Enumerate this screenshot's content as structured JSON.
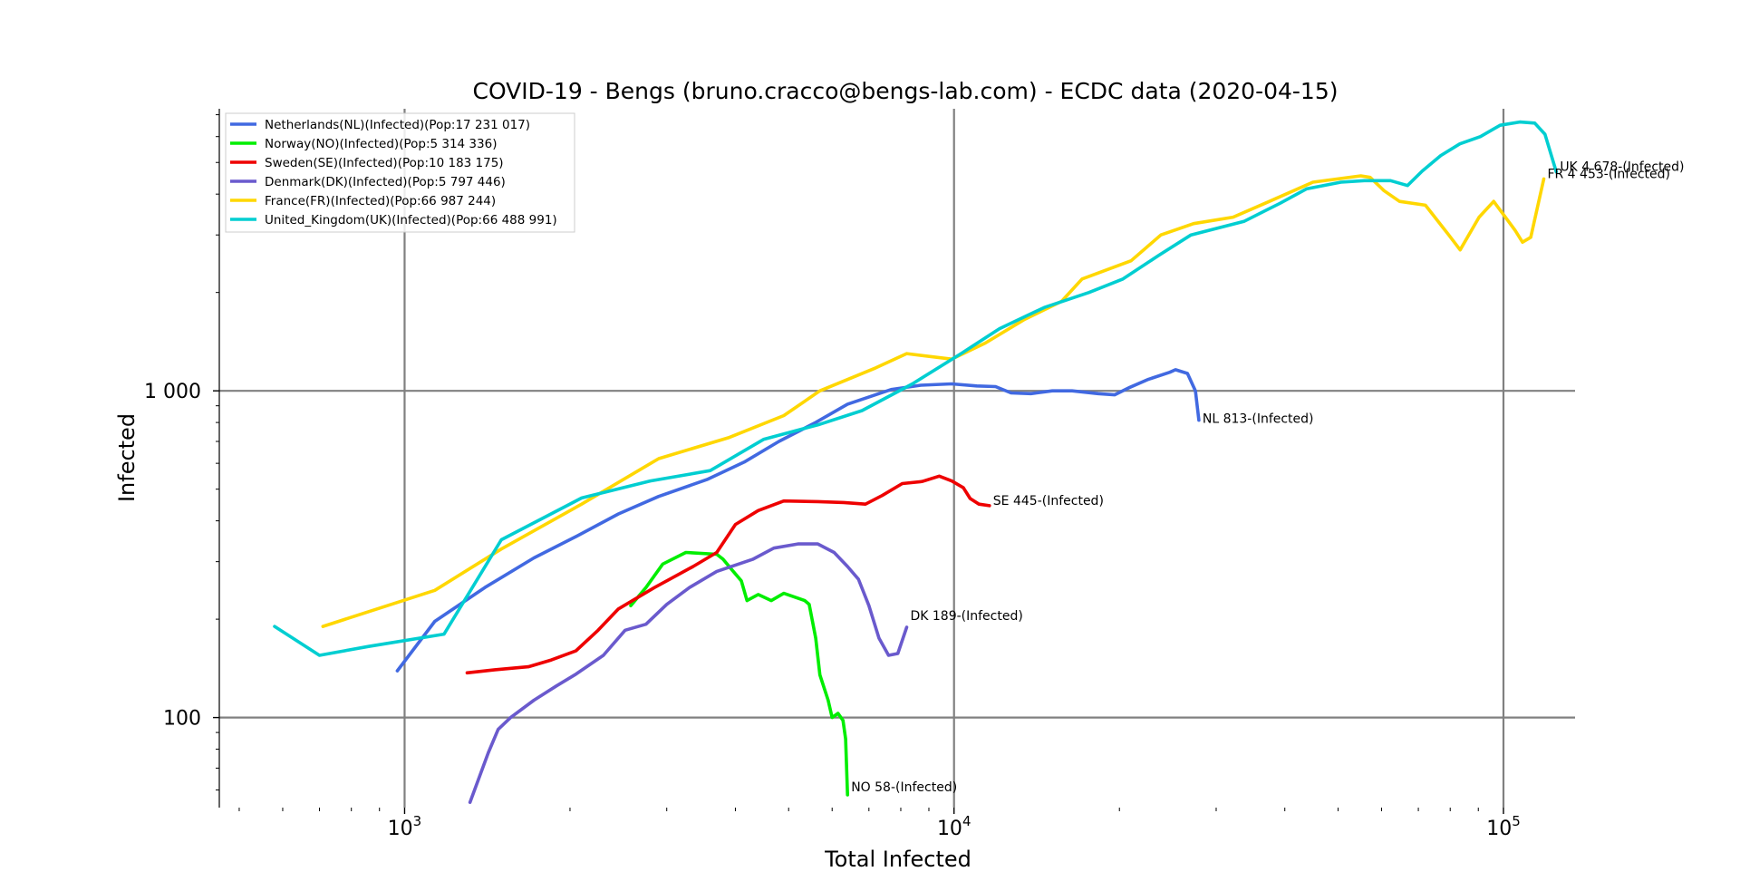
{
  "chart_data": {
    "type": "line",
    "title": "COVID-19 - Bengs (bruno.cracco@bengs-lab.com) - ECDC data  (2020-04-15)",
    "xlabel": "Total Infected",
    "ylabel": "Infected",
    "xscale": "log",
    "yscale": "log",
    "xlim": [
      460,
      135000
    ],
    "ylim": [
      53,
      7300
    ],
    "grid": true,
    "legend_position": "top-left",
    "x_ticks": [
      {
        "value": 1000,
        "base": "10",
        "exp": "3"
      },
      {
        "value": 10000,
        "base": "10",
        "exp": "4"
      },
      {
        "value": 100000,
        "base": "10",
        "exp": "5"
      }
    ],
    "y_ticks": [
      {
        "value": 100,
        "label": "100"
      },
      {
        "value": 1000,
        "label": "1 000"
      }
    ],
    "series": [
      {
        "name": "Netherlands(NL)(Infected)(Pop:17 231 017)",
        "color": "#4169e1",
        "annotation": "NL 813-(Infected)",
        "points": [
          [
            970,
            139
          ],
          [
            1135,
            197
          ],
          [
            1400,
            250
          ],
          [
            1720,
            308
          ],
          [
            2050,
            358
          ],
          [
            2450,
            420
          ],
          [
            2900,
            475
          ],
          [
            3550,
            535
          ],
          [
            4150,
            605
          ],
          [
            4800,
            700
          ],
          [
            5600,
            800
          ],
          [
            6400,
            910
          ],
          [
            7700,
            1010
          ],
          [
            8700,
            1040
          ],
          [
            9900,
            1050
          ],
          [
            11000,
            1035
          ],
          [
            11900,
            1030
          ],
          [
            12700,
            985
          ],
          [
            13800,
            980
          ],
          [
            15100,
            1000
          ],
          [
            16400,
            1000
          ],
          [
            18300,
            980
          ],
          [
            19600,
            972
          ],
          [
            20900,
            1025
          ],
          [
            22600,
            1085
          ],
          [
            24700,
            1140
          ],
          [
            25300,
            1160
          ],
          [
            26600,
            1130
          ],
          [
            27500,
            1000
          ],
          [
            27900,
            813
          ]
        ]
      },
      {
        "name": "Norway(NO)(Infected)(Pop:5 314 336)",
        "color": "#00ee00",
        "annotation": "NO 58-(Infected)",
        "points": [
          [
            2580,
            220
          ],
          [
            2750,
            250
          ],
          [
            2950,
            295
          ],
          [
            3250,
            320
          ],
          [
            3700,
            316
          ],
          [
            3800,
            305
          ],
          [
            3950,
            282
          ],
          [
            4100,
            262
          ],
          [
            4200,
            228
          ],
          [
            4400,
            238
          ],
          [
            4650,
            228
          ],
          [
            4900,
            240
          ],
          [
            5350,
            228
          ],
          [
            5450,
            222
          ],
          [
            5600,
            175
          ],
          [
            5700,
            135
          ],
          [
            5900,
            113
          ],
          [
            6000,
            100
          ],
          [
            6150,
            103
          ],
          [
            6280,
            98
          ],
          [
            6350,
            86
          ],
          [
            6400,
            58
          ]
        ]
      },
      {
        "name": "Sweden(SE)(Infected)(Pop:10 183 175)",
        "color": "#ee0000",
        "annotation": "SE 445-(Infected)",
        "points": [
          [
            1300,
            137
          ],
          [
            1460,
            140
          ],
          [
            1680,
            143
          ],
          [
            1850,
            150
          ],
          [
            2050,
            160
          ],
          [
            2250,
            185
          ],
          [
            2450,
            215
          ],
          [
            2850,
            250
          ],
          [
            3350,
            290
          ],
          [
            3700,
            320
          ],
          [
            4000,
            390
          ],
          [
            4400,
            430
          ],
          [
            4900,
            460
          ],
          [
            5650,
            458
          ],
          [
            6300,
            455
          ],
          [
            6900,
            450
          ],
          [
            7400,
            478
          ],
          [
            8050,
            520
          ],
          [
            8750,
            528
          ],
          [
            9400,
            548
          ],
          [
            9900,
            530
          ],
          [
            10400,
            505
          ],
          [
            10700,
            468
          ],
          [
            11100,
            450
          ],
          [
            11600,
            445
          ]
        ]
      },
      {
        "name": "Denmark(DK)(Infected)(Pop:5 797 446)",
        "color": "#6a5acd",
        "annotation": "DK 189-(Infected)",
        "points": [
          [
            1315,
            55
          ],
          [
            1420,
            78
          ],
          [
            1480,
            92
          ],
          [
            1560,
            100
          ],
          [
            1720,
            113
          ],
          [
            1890,
            125
          ],
          [
            2040,
            135
          ],
          [
            2300,
            155
          ],
          [
            2520,
            185
          ],
          [
            2750,
            193
          ],
          [
            3000,
            222
          ],
          [
            3300,
            250
          ],
          [
            3700,
            280
          ],
          [
            4300,
            305
          ],
          [
            4700,
            330
          ],
          [
            5200,
            340
          ],
          [
            5650,
            340
          ],
          [
            6050,
            320
          ],
          [
            6400,
            290
          ],
          [
            6700,
            265
          ],
          [
            7000,
            220
          ],
          [
            7300,
            175
          ],
          [
            7600,
            155
          ],
          [
            7900,
            157
          ],
          [
            8200,
            189
          ]
        ]
      },
      {
        "name": "France(FR)(Infected)(Pop:66 987 244)",
        "color": "#ffd700",
        "annotation": "FR 4 453-(Infected)",
        "points": [
          [
            710,
            190
          ],
          [
            1135,
            245
          ],
          [
            1500,
            328
          ],
          [
            2100,
            450
          ],
          [
            2900,
            620
          ],
          [
            3900,
            720
          ],
          [
            4900,
            840
          ],
          [
            5700,
            1000
          ],
          [
            7200,
            1175
          ],
          [
            8200,
            1300
          ],
          [
            9900,
            1250
          ],
          [
            11400,
            1400
          ],
          [
            13400,
            1650
          ],
          [
            15700,
            1880
          ],
          [
            17100,
            2200
          ],
          [
            21000,
            2500
          ],
          [
            23800,
            3000
          ],
          [
            27300,
            3250
          ],
          [
            32200,
            3400
          ],
          [
            37500,
            3800
          ],
          [
            45000,
            4350
          ],
          [
            55000,
            4550
          ],
          [
            57200,
            4500
          ],
          [
            60600,
            4100
          ],
          [
            64700,
            3800
          ],
          [
            72100,
            3700
          ],
          [
            79500,
            3000
          ],
          [
            83400,
            2700
          ],
          [
            90300,
            3400
          ],
          [
            96000,
            3800
          ],
          [
            100800,
            3400
          ],
          [
            105000,
            3100
          ],
          [
            108300,
            2850
          ],
          [
            112100,
            2950
          ],
          [
            118400,
            4453
          ]
        ]
      },
      {
        "name": "United_Kingdom(UK)(Infected)(Pop:66 488 991)",
        "color": "#00ced1",
        "annotation": "UK 4 678-(Infected)",
        "points": [
          [
            580,
            190
          ],
          [
            700,
            155
          ],
          [
            860,
            165
          ],
          [
            1180,
            180
          ],
          [
            1500,
            350
          ],
          [
            2100,
            470
          ],
          [
            2800,
            530
          ],
          [
            3600,
            570
          ],
          [
            4500,
            710
          ],
          [
            5700,
            790
          ],
          [
            6800,
            870
          ],
          [
            8400,
            1050
          ],
          [
            10300,
            1300
          ],
          [
            12100,
            1550
          ],
          [
            14600,
            1800
          ],
          [
            17600,
            2000
          ],
          [
            20300,
            2200
          ],
          [
            23600,
            2600
          ],
          [
            27000,
            3000
          ],
          [
            33700,
            3300
          ],
          [
            39200,
            3750
          ],
          [
            43800,
            4150
          ],
          [
            50600,
            4350
          ],
          [
            55800,
            4400
          ],
          [
            62300,
            4400
          ],
          [
            66900,
            4250
          ],
          [
            71100,
            4700
          ],
          [
            76900,
            5250
          ],
          [
            83300,
            5700
          ],
          [
            90800,
            6000
          ],
          [
            98600,
            6500
          ],
          [
            107100,
            6650
          ],
          [
            114000,
            6600
          ],
          [
            119000,
            6100
          ],
          [
            124800,
            4678
          ]
        ]
      }
    ]
  }
}
